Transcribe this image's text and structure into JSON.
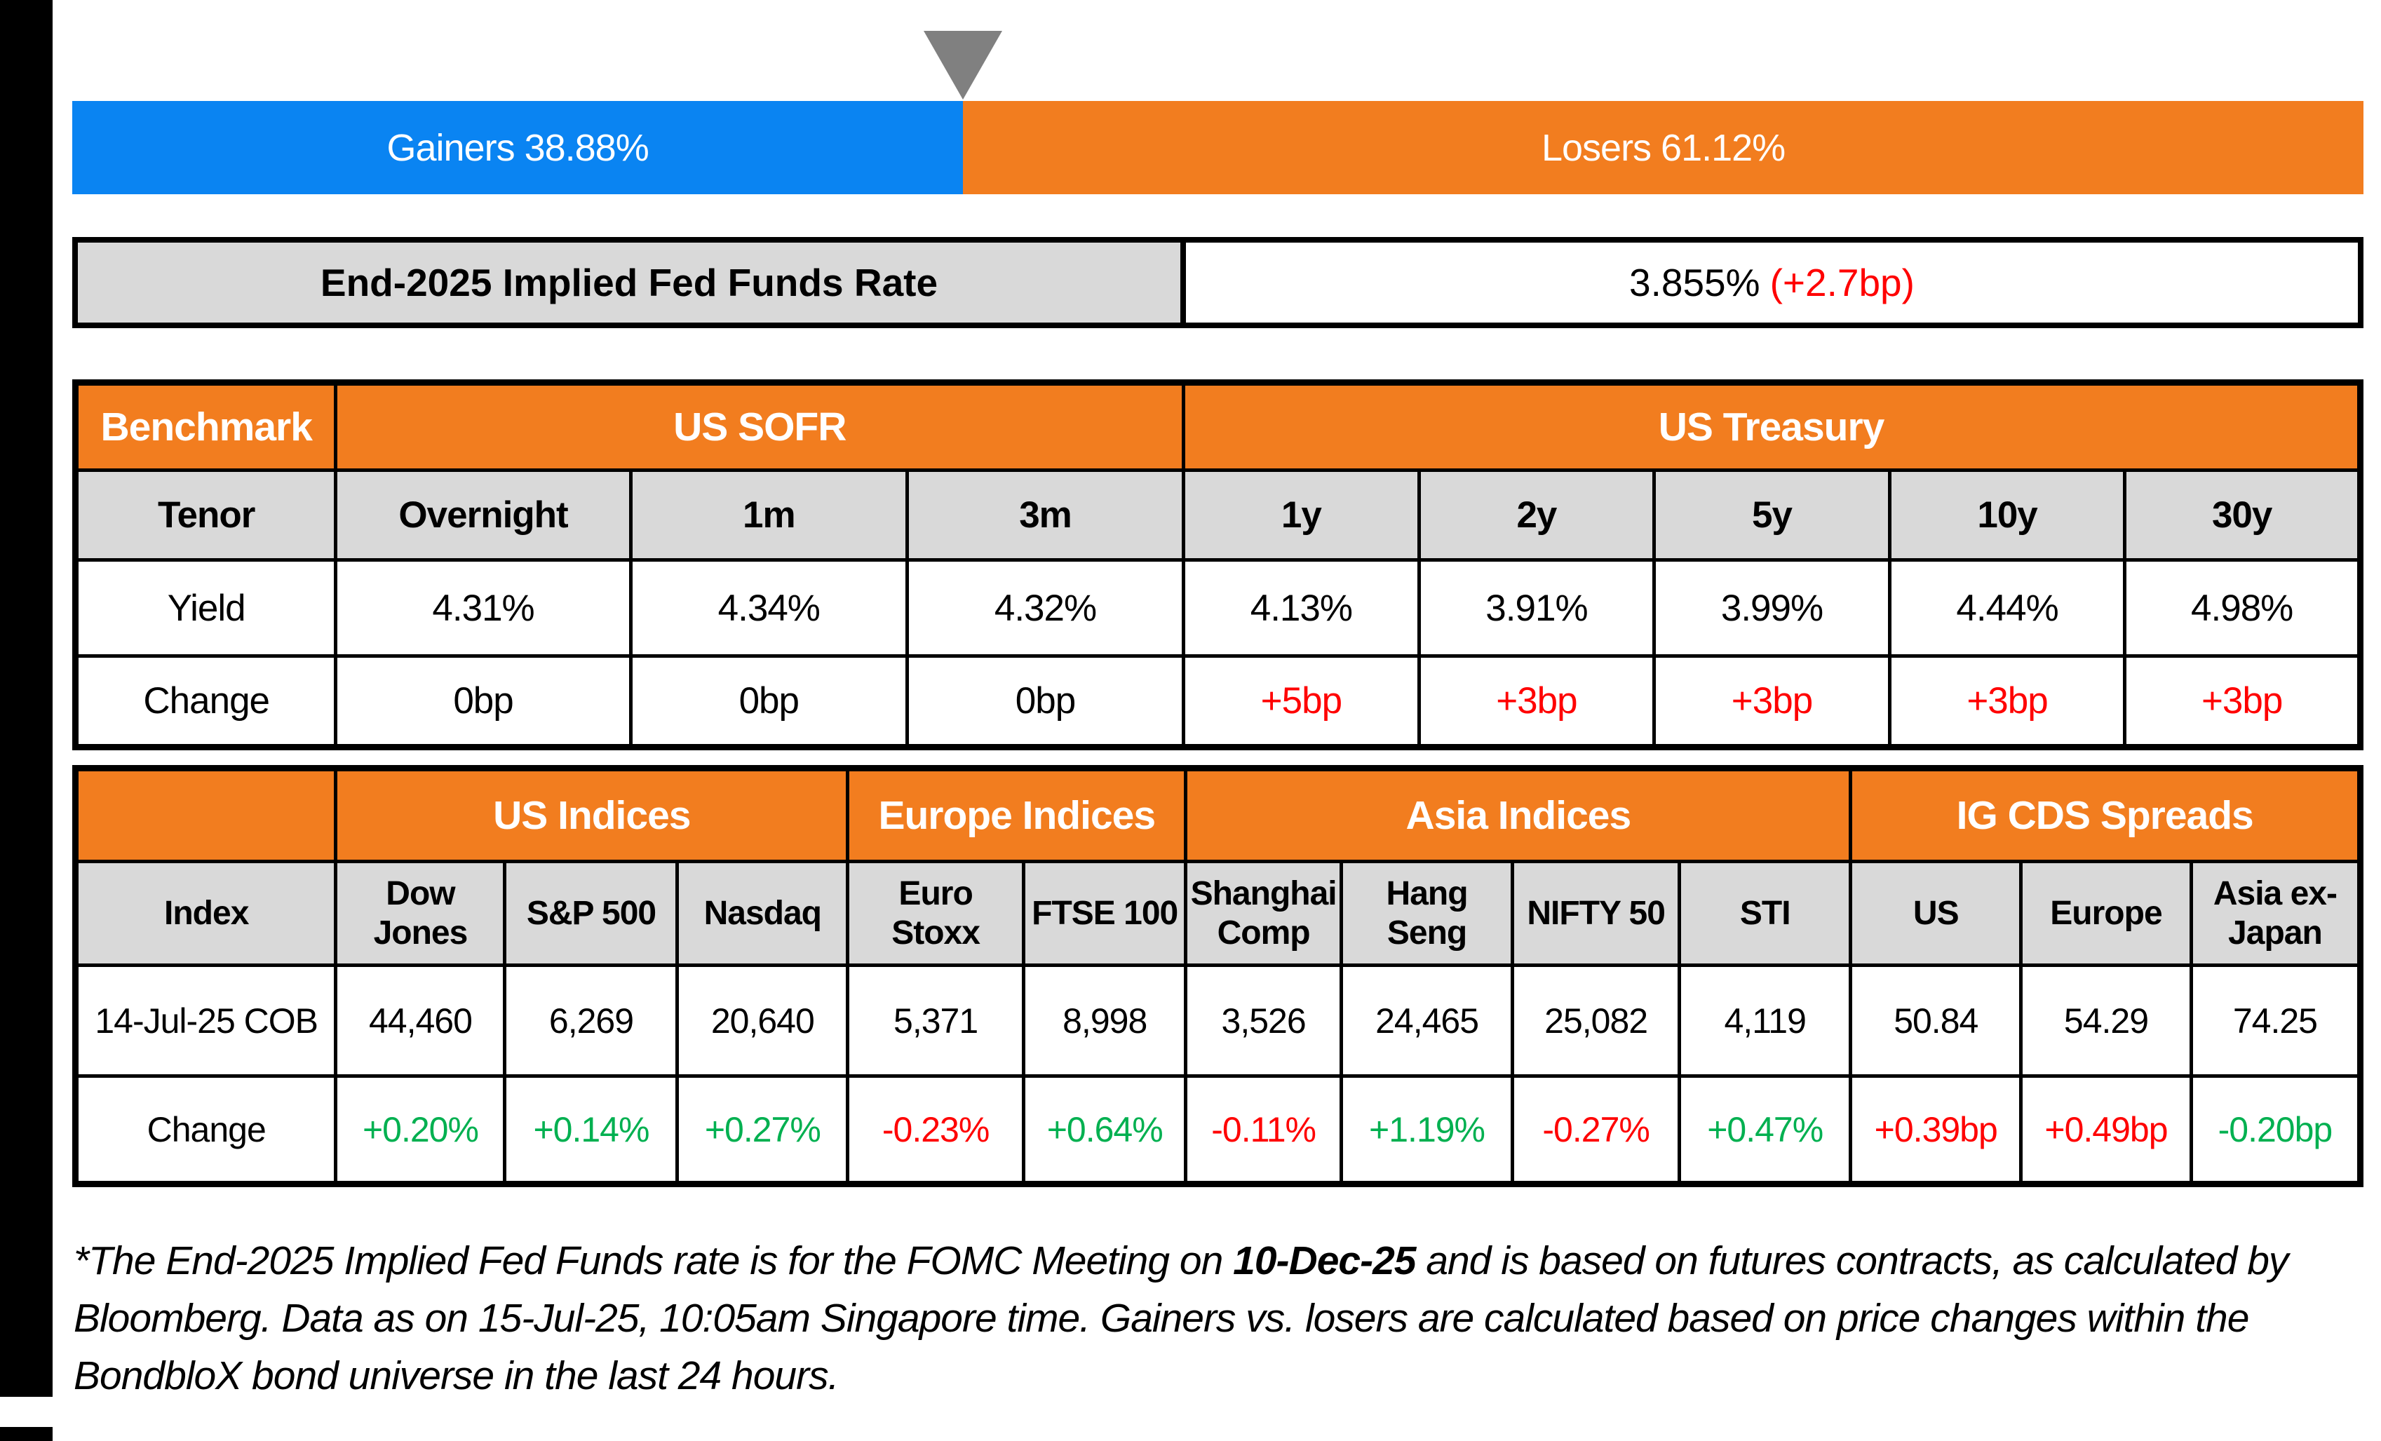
{
  "colors": {
    "blue": "#0A84F2",
    "orange": "#F27D1F",
    "cell_gray": "#D9D9D9",
    "triangle_gray": "#808080",
    "positive": "#00B050",
    "negative": "#FF0000"
  },
  "gauge": {
    "gainers_pct": 38.88,
    "losers_pct": 61.12,
    "gainers_label": "Gainers 38.88%",
    "losers_label": "Losers 61.12%"
  },
  "fed_funds": {
    "label": "End-2025 Implied Fed Funds Rate",
    "value": "3.855%",
    "change": "(+2.7bp)"
  },
  "benchmark_table": {
    "corner_label": "Benchmark",
    "sections": [
      "US SOFR",
      "US Treasury"
    ],
    "tenor_label": "Tenor",
    "tenors": [
      "Overnight",
      "1m",
      "3m",
      "1y",
      "2y",
      "5y",
      "10y",
      "30y"
    ],
    "yield_label": "Yield",
    "yields": [
      "4.31%",
      "4.34%",
      "4.32%",
      "4.13%",
      "3.91%",
      "3.99%",
      "4.44%",
      "4.98%"
    ],
    "change_label": "Change",
    "changes": [
      "0bp",
      "0bp",
      "0bp",
      "+5bp",
      "+3bp",
      "+3bp",
      "+3bp",
      "+3bp"
    ]
  },
  "indices_table": {
    "sections": [
      "US Indices",
      "Europe Indices",
      "Asia Indices",
      "IG CDS Spreads"
    ],
    "index_label": "Index",
    "index_names": [
      "Dow Jones",
      "S&P 500",
      "Nasdaq",
      "Euro Stoxx",
      "FTSE 100",
      "Shanghai Comp",
      "Hang Seng",
      "NIFTY 50",
      "STI",
      "US",
      "Europe",
      "Asia ex-Japan"
    ],
    "date_label": "14-Jul-25 COB",
    "values": [
      "44,460",
      "6,269",
      "20,640",
      "5,371",
      "8,998",
      "3,526",
      "24,465",
      "25,082",
      "4,119",
      "50.84",
      "54.29",
      "74.25"
    ],
    "change_label": "Change",
    "changes": [
      "+0.20%",
      "+0.14%",
      "+0.27%",
      "-0.23%",
      "+0.64%",
      "-0.11%",
      "+1.19%",
      "-0.27%",
      "+0.47%",
      "+0.39bp",
      "+0.49bp",
      "-0.20bp"
    ]
  },
  "footnote": {
    "line1_pre": "*The End-2025 Implied Fed Funds rate is for the FOMC Meeting on ",
    "line1_bold": "10-Dec-25",
    "line1_post": " and is based on futures contracts, as calculated by",
    "line2": "Bloomberg. Data as on 15-Jul-25, 10:05am Singapore time. Gainers vs. losers are calculated based on price changes within the",
    "line3": "BondbloX bond universe in the last 24 hours."
  },
  "chart_data": [
    {
      "type": "bar",
      "title": "Gainers vs Losers",
      "categories": [
        "Gainers",
        "Losers"
      ],
      "values": [
        38.88,
        61.12
      ],
      "unit": "%",
      "layout": "single stacked horizontal bar, marker triangle at boundary",
      "colors": [
        "#0A84F2",
        "#F27D1F"
      ]
    },
    {
      "type": "table",
      "title": "Benchmark yields",
      "columns": [
        "Overnight",
        "1m",
        "3m",
        "1y",
        "2y",
        "5y",
        "10y",
        "30y"
      ],
      "groups": {
        "US SOFR": [
          "Overnight",
          "1m",
          "3m"
        ],
        "US Treasury": [
          "1y",
          "2y",
          "5y",
          "10y",
          "30y"
        ]
      },
      "rows": [
        {
          "label": "Yield",
          "values": [
            "4.31%",
            "4.34%",
            "4.32%",
            "4.13%",
            "3.91%",
            "3.99%",
            "4.44%",
            "4.98%"
          ]
        },
        {
          "label": "Change",
          "values": [
            "0bp",
            "0bp",
            "0bp",
            "+5bp",
            "+3bp",
            "+3bp",
            "+3bp",
            "+3bp"
          ]
        }
      ]
    },
    {
      "type": "table",
      "title": "Indices and IG CDS spreads",
      "columns": [
        "Dow Jones",
        "S&P 500",
        "Nasdaq",
        "Euro Stoxx",
        "FTSE 100",
        "Shanghai Comp",
        "Hang Seng",
        "NIFTY 50",
        "STI",
        "US",
        "Europe",
        "Asia ex-Japan"
      ],
      "groups": {
        "US Indices": [
          "Dow Jones",
          "S&P 500",
          "Nasdaq"
        ],
        "Europe Indices": [
          "Euro Stoxx",
          "FTSE 100"
        ],
        "Asia Indices": [
          "Shanghai Comp",
          "Hang Seng",
          "NIFTY 50",
          "STI"
        ],
        "IG CDS Spreads": [
          "US",
          "Europe",
          "Asia ex-Japan"
        ]
      },
      "rows": [
        {
          "label": "14-Jul-25 COB",
          "values": [
            "44,460",
            "6,269",
            "20,640",
            "5,371",
            "8,998",
            "3,526",
            "24,465",
            "25,082",
            "4,119",
            "50.84",
            "54.29",
            "74.25"
          ]
        },
        {
          "label": "Change",
          "values": [
            "+0.20%",
            "+0.14%",
            "+0.27%",
            "-0.23%",
            "+0.64%",
            "-0.11%",
            "+1.19%",
            "-0.27%",
            "+0.47%",
            "+0.39bp",
            "+0.49bp",
            "-0.20bp"
          ]
        }
      ]
    }
  ]
}
